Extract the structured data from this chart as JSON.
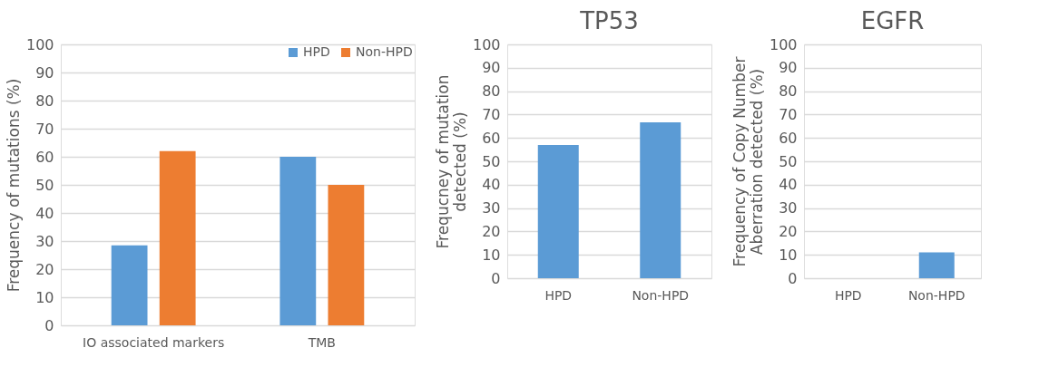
{
  "chart_data": [
    {
      "type": "bar",
      "ylabel": "Frequency of mutations (%)",
      "categories": [
        "IO associated markers",
        "TMB"
      ],
      "series": [
        {
          "name": "HPD",
          "color": "#5b9bd5",
          "values": [
            28.5,
            60
          ]
        },
        {
          "name": "Non-HPD",
          "color": "#ed7d31",
          "values": [
            62,
            50
          ]
        }
      ],
      "ylim": [
        0,
        100
      ],
      "yticks": [
        0,
        10,
        20,
        30,
        40,
        50,
        60,
        70,
        80,
        90,
        100
      ],
      "grid": "y",
      "legend": "top right"
    },
    {
      "type": "bar",
      "title": "TP53",
      "ylabel": "Frequcney of mutation\ndetected (%)",
      "categories": [
        "HPD",
        "Non-HPD"
      ],
      "series": [
        {
          "color": "#5b9bd5",
          "values": [
            57,
            66.7
          ]
        }
      ],
      "ylim": [
        0,
        100
      ],
      "yticks": [
        0,
        10,
        20,
        30,
        40,
        50,
        60,
        70,
        80,
        90,
        100
      ],
      "grid": "y"
    },
    {
      "type": "bar",
      "title": "EGFR",
      "ylabel": "Frequency of Copy Number\nAberration  detected (%)",
      "categories": [
        "HPD",
        "Non-HPD"
      ],
      "series": [
        {
          "color": "#5b9bd5",
          "values": [
            0,
            11
          ]
        }
      ],
      "ylim": [
        0,
        100
      ],
      "yticks": [
        0,
        10,
        20,
        30,
        40,
        50,
        60,
        70,
        80,
        90,
        100
      ],
      "grid": "y"
    }
  ]
}
